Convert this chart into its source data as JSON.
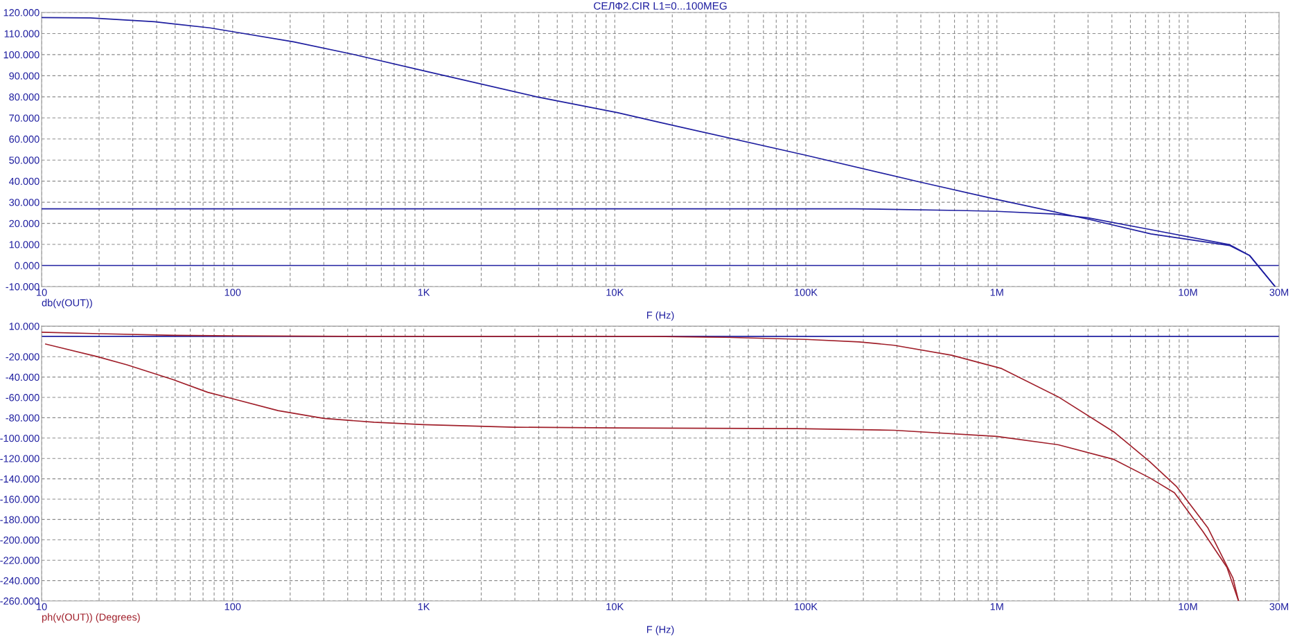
{
  "chart_data": [
    {
      "type": "line",
      "title": "СЕЛФ2.CIR L1=0...100MEG",
      "xlabel": "F (Hz)",
      "annotations": [
        "db(v(OUT))"
      ],
      "log": "x",
      "grid": true,
      "line_style": "solid",
      "marker": "none",
      "xlim": [
        10,
        30000000
      ],
      "ylim": [
        -10,
        120
      ],
      "xticks": [
        10,
        100,
        {
          "value": 1000,
          "label": "1K"
        },
        {
          "value": 10000,
          "label": "10K"
        },
        {
          "value": 100000,
          "label": "100K"
        },
        {
          "value": 1000000,
          "label": "1M"
        },
        {
          "value": 10000000,
          "label": "10M"
        },
        {
          "value": 30000000,
          "label": "30M"
        }
      ],
      "yticks": [
        {
          "value": -10,
          "label": "-10.000"
        },
        {
          "value": 0,
          "label": "0.000"
        },
        {
          "value": 10,
          "label": "10.000"
        },
        {
          "value": 20,
          "label": "20.000"
        },
        {
          "value": 30,
          "label": "30.000"
        },
        {
          "value": 40,
          "label": "40.000"
        },
        {
          "value": 50,
          "label": "50.000"
        },
        {
          "value": 60,
          "label": "60.000"
        },
        {
          "value": 70,
          "label": "70.000"
        },
        {
          "value": 80,
          "label": "80.000"
        },
        {
          "value": 90,
          "label": "90.000"
        },
        {
          "value": 100,
          "label": "100.000"
        },
        {
          "value": 110,
          "label": "110.000"
        },
        {
          "value": 120,
          "label": "120.000"
        }
      ],
      "series": [
        {
          "color": "#1f1fa0",
          "x": [
            10,
            30000000
          ],
          "values": [
            0,
            0
          ]
        },
        {
          "color": "#1f1fa0",
          "x": [
            10,
            18,
            39,
            76,
            100,
            208,
            423,
            1050,
            3900,
            10300,
            16800,
            100000,
            404000,
            1000000,
            3000000,
            6400000,
            16500000,
            21000000,
            28600000
          ],
          "values": [
            117.6,
            117.4,
            115.6,
            112.7,
            110.9,
            106.1,
            100.2,
            91.9,
            80,
            72.5,
            68.1,
            52.3,
            39.4,
            31.3,
            22,
            15,
            9.5,
            4.8,
            -10
          ]
        },
        {
          "color": "#1f1fa0",
          "x": [
            10,
            182000,
            630000,
            1000000,
            2000000,
            3000000,
            6400000,
            16500000,
            21000000,
            28600000
          ],
          "values": [
            26.9,
            26.9,
            26.1,
            25.7,
            24.4,
            22.6,
            17,
            9.9,
            4.8,
            -10
          ]
        }
      ]
    },
    {
      "type": "line",
      "xlabel": "F (Hz)",
      "annotations": [
        "ph(v(OUT)) (Degrees)"
      ],
      "log": "x",
      "grid": true,
      "line_style": "solid",
      "marker": "none",
      "xlim": [
        10,
        30000000
      ],
      "ylim": [
        -260,
        10
      ],
      "xticks": [
        10,
        100,
        {
          "value": 1000,
          "label": "1K"
        },
        {
          "value": 10000,
          "label": "10K"
        },
        {
          "value": 100000,
          "label": "100K"
        },
        {
          "value": 1000000,
          "label": "1M"
        },
        {
          "value": 10000000,
          "label": "10M"
        },
        {
          "value": 30000000,
          "label": "30M"
        }
      ],
      "yticks": [
        {
          "value": -260,
          "label": "-260.000"
        },
        {
          "value": -240,
          "label": "-240.000"
        },
        {
          "value": -220,
          "label": "-220.000"
        },
        {
          "value": -200,
          "label": "-200.000"
        },
        {
          "value": -180,
          "label": "-180.000"
        },
        {
          "value": -160,
          "label": "-160.000"
        },
        {
          "value": -140,
          "label": "-140.000"
        },
        {
          "value": -120,
          "label": "-120.000"
        },
        {
          "value": -100,
          "label": "-100.000"
        },
        {
          "value": -80,
          "label": "-80.000"
        },
        {
          "value": -60,
          "label": "-60.000"
        },
        {
          "value": -40,
          "label": "-40.000"
        },
        {
          "value": -20,
          "label": "-20.000"
        },
        {
          "value": 10,
          "label": "10.000"
        }
      ],
      "series": [
        {
          "color": "#1f1fa0",
          "x": [
            10,
            30000000
          ],
          "values": [
            0,
            0
          ]
        },
        {
          "color": "#a01f2a",
          "x": [
            10,
            20,
            50,
            100,
            400,
            15600,
            38000,
            100000,
            190000,
            290000,
            580000,
            1060000,
            2100000,
            4100000,
            6300000,
            8700000,
            12700000,
            17200000,
            18400000
          ],
          "values": [
            4,
            2.6,
            1,
            0.5,
            0,
            0,
            -1,
            -3,
            -5.5,
            -8.8,
            -18.6,
            -31.7,
            -59.6,
            -94,
            -123,
            -147.5,
            -188,
            -237.5,
            -260
          ]
        },
        {
          "color": "#a01f2a",
          "x": [
            10.5,
            19.4,
            28,
            49,
            74,
            97,
            173,
            300,
            550,
            1000,
            3000,
            10200,
            90000,
            290000,
            1000000,
            2100000,
            4100000,
            6300000,
            8500000,
            12000000,
            16000000,
            18400000
          ],
          "values": [
            -7.6,
            -19.8,
            -28,
            -42.7,
            -55,
            -60.7,
            -73,
            -80.7,
            -84.4,
            -86.8,
            -89.3,
            -90,
            -90.7,
            -92.3,
            -98.4,
            -106.6,
            -121,
            -139,
            -153.7,
            -192,
            -227,
            -260
          ]
        }
      ]
    }
  ]
}
